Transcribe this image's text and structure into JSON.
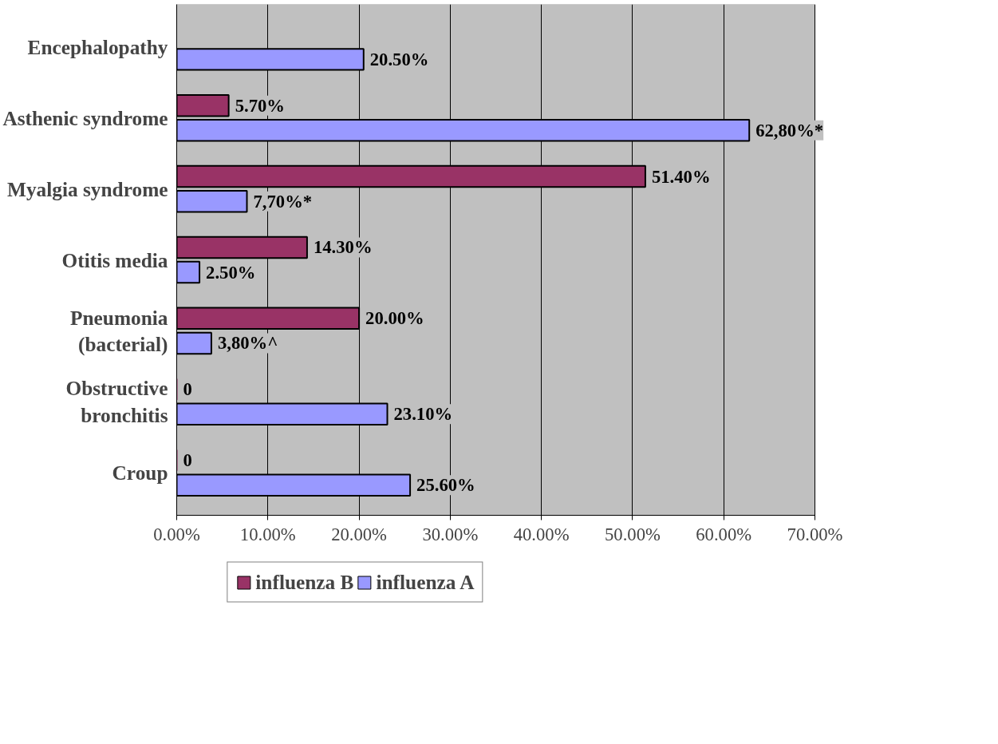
{
  "chart_data": {
    "type": "bar",
    "orientation": "horizontal",
    "categories": [
      "Encephalopathy",
      "Asthenic syndrome",
      "Myalgia syndrome",
      "Otitis media",
      "Pneumonia\n(bacterial)",
      "Obstructive\nbronchitis",
      "Croup"
    ],
    "series": [
      {
        "name": "influenza B",
        "color": "#993366",
        "values": [
          null,
          5.7,
          51.4,
          14.3,
          20.0,
          0,
          0
        ],
        "value_labels": [
          null,
          "5.70%",
          "51.40%",
          "14.30%",
          "20.00%",
          "0",
          "0"
        ]
      },
      {
        "name": "influenza A",
        "color": "#9999ff",
        "values": [
          20.5,
          62.8,
          7.7,
          2.5,
          3.8,
          23.1,
          25.6
        ],
        "value_labels": [
          "20.50%",
          "62,80%*",
          "7,70%*",
          "2.50%",
          "3,80%^",
          "23.10%",
          "25.60%"
        ]
      }
    ],
    "xlim": [
      0,
      70
    ],
    "xticks": [
      {
        "value": 0,
        "label": "0.00%"
      },
      {
        "value": 10,
        "label": "10.00%"
      },
      {
        "value": 20,
        "label": "20.00%"
      },
      {
        "value": 30,
        "label": "30.00%"
      },
      {
        "value": 40,
        "label": "40.00%"
      },
      {
        "value": 50,
        "label": "50.00%"
      },
      {
        "value": 60,
        "label": "60.00%"
      },
      {
        "value": 70,
        "label": "70.00%"
      }
    ],
    "grid": "x",
    "legend": "bottom"
  }
}
